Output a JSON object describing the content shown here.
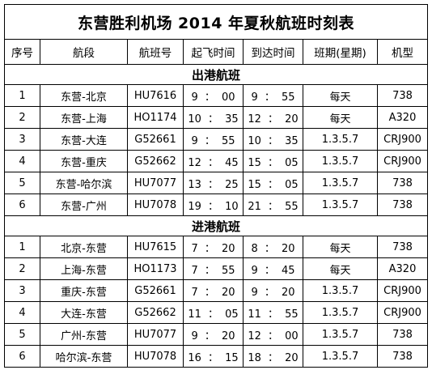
{
  "title": "东营胜利机场 2014 年夏秋航班时刻表",
  "headers": [
    "序号",
    "航段",
    "航班号",
    "起飞时间",
    "到达时间",
    "班期(星期)",
    "机型"
  ],
  "sections": [
    {
      "name": "出港航班",
      "rows": [
        {
          "no": "1",
          "route": "东营-北京",
          "flight": "HU7616",
          "dep": "9 ： 00",
          "arr": "9 ： 55",
          "days": "每天",
          "aircraft": "738"
        },
        {
          "no": "2",
          "route": "东营-上海",
          "flight": "HO1174",
          "dep": "10 ： 35",
          "arr": "12 ： 20",
          "days": "每天",
          "aircraft": "A320"
        },
        {
          "no": "3",
          "route": "东营-大连",
          "flight": "G52661",
          "dep": "9 ： 55",
          "arr": "10 ： 35",
          "days": "1.3.5.7",
          "aircraft": "CRJ900"
        },
        {
          "no": "4",
          "route": "东营-重庆",
          "flight": "G52662",
          "dep": "12 ： 45",
          "arr": "15 ： 05",
          "days": "1.3.5.7",
          "aircraft": "CRJ900"
        },
        {
          "no": "5",
          "route": "东营-哈尔滨",
          "flight": "HU7077",
          "dep": "13 ： 25",
          "arr": "15 ： 05",
          "days": "1.3.5.7",
          "aircraft": "738"
        },
        {
          "no": "6",
          "route": "东营-广州",
          "flight": "HU7078",
          "dep": "19 ： 10",
          "arr": "21 ： 55",
          "days": "1.3.5.7",
          "aircraft": "738"
        }
      ]
    },
    {
      "name": "进港航班",
      "rows": [
        {
          "no": "1",
          "route": "北京-东营",
          "flight": "HU7615",
          "dep": "7 ： 20",
          "arr": "8 ： 20",
          "days": "每天",
          "aircraft": "738"
        },
        {
          "no": "2",
          "route": "上海-东营",
          "flight": "HO1173",
          "dep": "7 ： 55",
          "arr": "9 ： 45",
          "days": "每天",
          "aircraft": "A320"
        },
        {
          "no": "3",
          "route": "重庆-东营",
          "flight": "G52661",
          "dep": "7 ： 20",
          "arr": "9 ： 20",
          "days": "1.3.5.7",
          "aircraft": "CRJ900"
        },
        {
          "no": "4",
          "route": "大连-东营",
          "flight": "G52662",
          "dep": "11 ： 05",
          "arr": "11 ： 55",
          "days": "1.3.5.7",
          "aircraft": "CRJ900"
        },
        {
          "no": "5",
          "route": "广州-东营",
          "flight": "HU7077",
          "dep": "9 ： 20",
          "arr": "12 ： 00",
          "days": "1.3.5.7",
          "aircraft": "738"
        },
        {
          "no": "6",
          "route": "哈尔滨-东营",
          "flight": "HU7078",
          "dep": "16 ： 15",
          "arr": "18 ： 20",
          "days": "1.3.5.7",
          "aircraft": "738"
        }
      ]
    }
  ]
}
